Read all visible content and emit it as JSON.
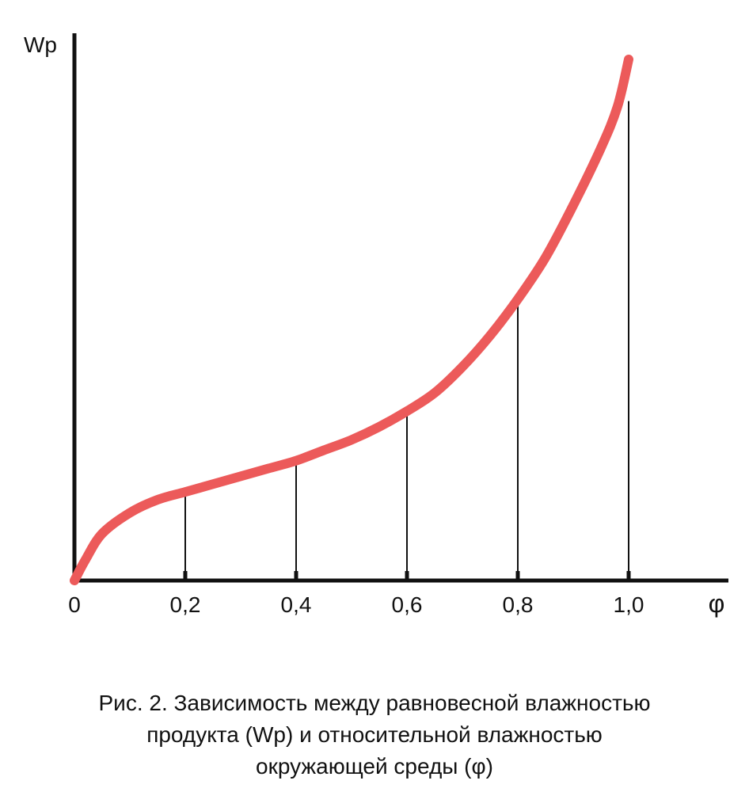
{
  "chart_data": {
    "type": "line",
    "ylabel": "Wp",
    "xlabel": "φ",
    "x_ticks": [
      "0",
      "0,2",
      "0,4",
      "0,6",
      "0,8",
      "1,0"
    ],
    "xlim": [
      0,
      1.0
    ],
    "ylim": [
      0,
      1.0
    ],
    "grid": false,
    "legend": "none",
    "series": [
      {
        "x": [
          0.0,
          0.02,
          0.05,
          0.1,
          0.15,
          0.2,
          0.25,
          0.3,
          0.35,
          0.4,
          0.45,
          0.5,
          0.55,
          0.6,
          0.65,
          0.7,
          0.75,
          0.8,
          0.85,
          0.9,
          0.95,
          0.98,
          1.0
        ],
        "y": [
          0.0,
          0.04,
          0.09,
          0.13,
          0.155,
          0.17,
          0.185,
          0.2,
          0.215,
          0.23,
          0.25,
          0.27,
          0.295,
          0.325,
          0.36,
          0.41,
          0.47,
          0.54,
          0.62,
          0.72,
          0.83,
          0.91,
          1.0
        ]
      }
    ],
    "drop_lines_x": [
      0.2,
      0.4,
      0.6,
      0.8,
      1.0
    ],
    "colors": {
      "curve": "#ec5a5a",
      "axes": "#111111",
      "drop_lines": "#111111"
    }
  },
  "caption": {
    "line1": "Рис. 2. Зависимость между равновесной влажностью",
    "line2": "продукта (Wp) и относительной влажностью",
    "line3": "окружающей среды (φ)"
  }
}
